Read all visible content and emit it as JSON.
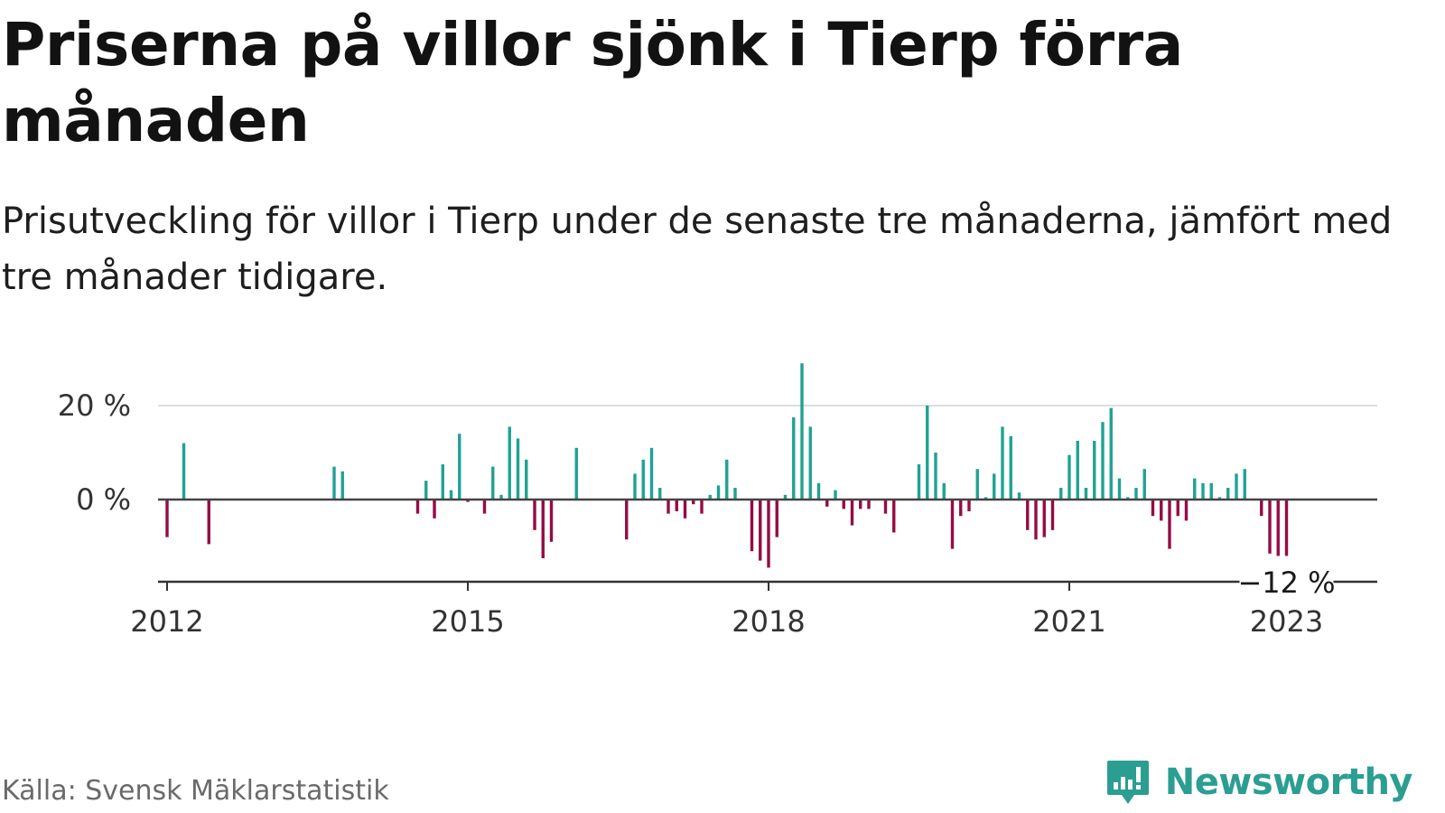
{
  "title": "Priserna på villor sjönk i Tierp förra månaden",
  "subtitle": "Prisutveckling för villor i Tierp under de senaste tre månaderna, jämfört med tre månader tidigare.",
  "source": "Källa: Svensk Mäklarstatistik",
  "brand": {
    "name": "Newsworthy",
    "icon": "newsworthy-logo-icon",
    "color": "#2b9e92"
  },
  "colors": {
    "positive": "#1fa293",
    "negative": "#950c45",
    "zero_line": "#444444",
    "grid": "#dddddd",
    "axis": "#333333"
  },
  "chart_data": {
    "type": "bar",
    "ylabel": "",
    "xlabel": "",
    "ylim": [
      -17,
      30
    ],
    "y_ticks": [
      {
        "value": 0,
        "label": "0 %"
      },
      {
        "value": 20,
        "label": "20 %"
      }
    ],
    "x_ticks": [
      "2012",
      "2015",
      "2018",
      "2021",
      "2023"
    ],
    "grid": true,
    "last_value_label": "−12 %",
    "series": [
      {
        "values": [
          {
            "date": "2012-01",
            "value": -8
          },
          {
            "date": "2012-03",
            "value": 12
          },
          {
            "date": "2012-06",
            "value": -9.5
          },
          {
            "date": "2013-09",
            "value": 7
          },
          {
            "date": "2013-10",
            "value": 6
          },
          {
            "date": "2014-07",
            "value": -3
          },
          {
            "date": "2014-08",
            "value": 4
          },
          {
            "date": "2014-09",
            "value": -4
          },
          {
            "date": "2014-10",
            "value": 7.5
          },
          {
            "date": "2014-11",
            "value": 2
          },
          {
            "date": "2014-12",
            "value": 14
          },
          {
            "date": "2015-01",
            "value": -0.5
          },
          {
            "date": "2015-03",
            "value": -3
          },
          {
            "date": "2015-04",
            "value": 7
          },
          {
            "date": "2015-05",
            "value": 1
          },
          {
            "date": "2015-06",
            "value": 15.5
          },
          {
            "date": "2015-07",
            "value": 13
          },
          {
            "date": "2015-08",
            "value": 8.5
          },
          {
            "date": "2015-09",
            "value": -6.5
          },
          {
            "date": "2015-10",
            "value": -12.5
          },
          {
            "date": "2015-11",
            "value": -9
          },
          {
            "date": "2016-02",
            "value": 11
          },
          {
            "date": "2016-08",
            "value": -8.5
          },
          {
            "date": "2016-09",
            "value": 5.5
          },
          {
            "date": "2016-10",
            "value": 8.5
          },
          {
            "date": "2016-11",
            "value": 11
          },
          {
            "date": "2016-12",
            "value": 2.5
          },
          {
            "date": "2017-01",
            "value": -3
          },
          {
            "date": "2017-02",
            "value": -2.5
          },
          {
            "date": "2017-03",
            "value": -4
          },
          {
            "date": "2017-04",
            "value": -1
          },
          {
            "date": "2017-05",
            "value": -3
          },
          {
            "date": "2017-06",
            "value": 1
          },
          {
            "date": "2017-07",
            "value": 3
          },
          {
            "date": "2017-08",
            "value": 8.5
          },
          {
            "date": "2017-09",
            "value": 2.5
          },
          {
            "date": "2017-11",
            "value": -11
          },
          {
            "date": "2017-12",
            "value": -13
          },
          {
            "date": "2018-01",
            "value": -14.5
          },
          {
            "date": "2018-02",
            "value": -8
          },
          {
            "date": "2018-03",
            "value": 1
          },
          {
            "date": "2018-04",
            "value": 17.5
          },
          {
            "date": "2018-05",
            "value": 29
          },
          {
            "date": "2018-06",
            "value": 15.5
          },
          {
            "date": "2018-07",
            "value": 3.5
          },
          {
            "date": "2018-08",
            "value": -1.5
          },
          {
            "date": "2018-09",
            "value": 2
          },
          {
            "date": "2018-10",
            "value": -2
          },
          {
            "date": "2018-11",
            "value": -5.5
          },
          {
            "date": "2018-12",
            "value": -2
          },
          {
            "date": "2019-01",
            "value": -2
          },
          {
            "date": "2019-03",
            "value": -3
          },
          {
            "date": "2019-04",
            "value": -7
          },
          {
            "date": "2019-07",
            "value": 7.5
          },
          {
            "date": "2019-08",
            "value": 20
          },
          {
            "date": "2019-09",
            "value": 10
          },
          {
            "date": "2019-10",
            "value": 3.5
          },
          {
            "date": "2019-11",
            "value": -10.5
          },
          {
            "date": "2019-12",
            "value": -3.5
          },
          {
            "date": "2020-01",
            "value": -2.5
          },
          {
            "date": "2020-02",
            "value": 6.5
          },
          {
            "date": "2020-03",
            "value": 0.5
          },
          {
            "date": "2020-04",
            "value": 5.5
          },
          {
            "date": "2020-05",
            "value": 15.5
          },
          {
            "date": "2020-06",
            "value": 13.5
          },
          {
            "date": "2020-07",
            "value": 1.5
          },
          {
            "date": "2020-08",
            "value": -6.5
          },
          {
            "date": "2020-09",
            "value": -8.5
          },
          {
            "date": "2020-10",
            "value": -8
          },
          {
            "date": "2020-11",
            "value": -6.5
          },
          {
            "date": "2020-12",
            "value": 2.5
          },
          {
            "date": "2021-01",
            "value": 9.5
          },
          {
            "date": "2021-02",
            "value": 12.5
          },
          {
            "date": "2021-03",
            "value": 2.5
          },
          {
            "date": "2021-04",
            "value": 12.5
          },
          {
            "date": "2021-05",
            "value": 16.5
          },
          {
            "date": "2021-06",
            "value": 19.5
          },
          {
            "date": "2021-07",
            "value": 4.5
          },
          {
            "date": "2021-08",
            "value": 0.5
          },
          {
            "date": "2021-09",
            "value": 2.5
          },
          {
            "date": "2021-10",
            "value": 6.5
          },
          {
            "date": "2021-11",
            "value": -3.5
          },
          {
            "date": "2021-12",
            "value": -4.5
          },
          {
            "date": "2022-01",
            "value": -10.5
          },
          {
            "date": "2022-02",
            "value": -3.5
          },
          {
            "date": "2022-03",
            "value": -4.5
          },
          {
            "date": "2022-04",
            "value": 4.5
          },
          {
            "date": "2022-05",
            "value": 3.5
          },
          {
            "date": "2022-06",
            "value": 3.5
          },
          {
            "date": "2022-07",
            "value": 0.5
          },
          {
            "date": "2022-08",
            "value": 2.5
          },
          {
            "date": "2022-09",
            "value": 5.5
          },
          {
            "date": "2022-10",
            "value": 6.5
          },
          {
            "date": "2022-12",
            "value": -3.5
          },
          {
            "date": "2023-01",
            "value": -11.5
          },
          {
            "date": "2023-02",
            "value": -12
          },
          {
            "date": "2023-03",
            "value": -12
          }
        ]
      }
    ]
  }
}
